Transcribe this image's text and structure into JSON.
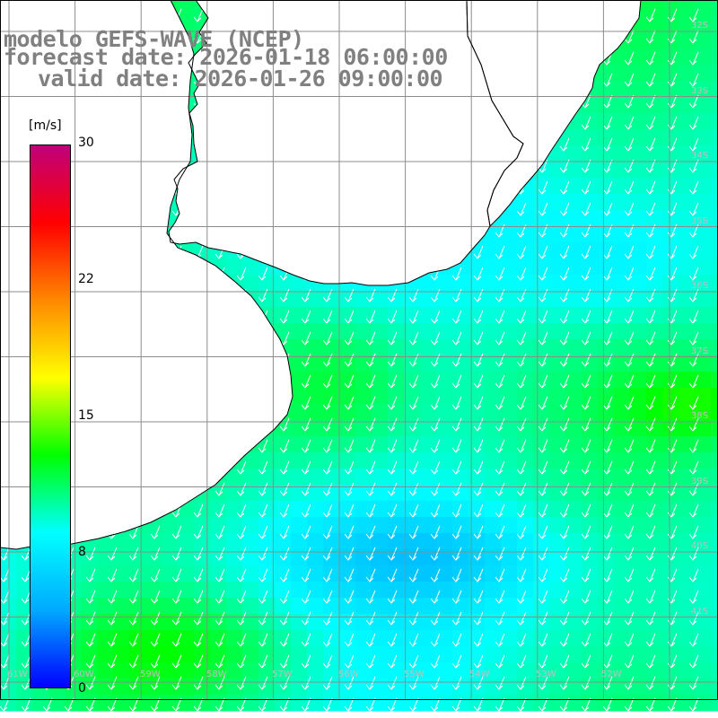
{
  "title": {
    "model": "modelo GEFS-WAVE (NCEP)",
    "forecast": "forecast date: 2026-01-18 06:00:00",
    "valid": "valid date: 2026-01-26 09:00:00"
  },
  "colorbar": {
    "unit": "[m/s]",
    "ticks": [
      "30",
      "22",
      "15",
      "8",
      "0"
    ],
    "range": [
      0,
      30
    ],
    "colors": [
      "#0000ff",
      "#00aaff",
      "#00ffff",
      "#00ff00",
      "#ffff00",
      "#ff8800",
      "#ff0000",
      "#c0007a"
    ]
  },
  "lat_labels": [
    "32S",
    "33S",
    "34S",
    "35S",
    "36S",
    "37S",
    "38S",
    "39S",
    "40S",
    "41S"
  ],
  "lon_labels": [
    "61W",
    "60W",
    "59W",
    "58W",
    "57W",
    "56W",
    "55W",
    "54W",
    "53W",
    "52W"
  ],
  "map": {
    "land_color": "#ffffff",
    "coast_color": "#000000",
    "grid_color": "#8c8c8c",
    "arrow_color": "#ffffff",
    "wind_direction": "from NE"
  }
}
